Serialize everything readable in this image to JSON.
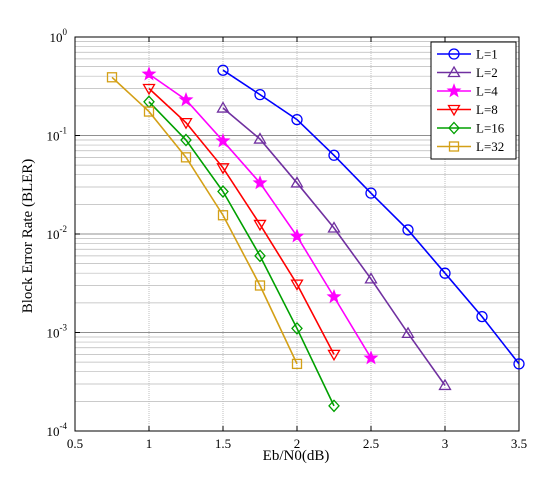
{
  "chart_data": {
    "type": "line",
    "xlabel": "Eb/N0(dB)",
    "ylabel": "Block Error Rate (BLER)",
    "xlim": [
      0.5,
      3.5
    ],
    "ylim": [
      0.0001,
      1
    ],
    "yscale": "log",
    "grid": true,
    "legend_position": "top-right",
    "x_ticks": [
      "0.5",
      "1",
      "1.5",
      "2",
      "2.5",
      "3",
      "3.5"
    ],
    "y_ticks": [
      {
        "base": "10",
        "exp": "0"
      },
      {
        "base": "10",
        "exp": "-1"
      },
      {
        "base": "10",
        "exp": "-2"
      },
      {
        "base": "10",
        "exp": "-3"
      },
      {
        "base": "10",
        "exp": "-4"
      }
    ],
    "series": [
      {
        "name": "L=1",
        "color": "#0000ff",
        "marker": "circle",
        "x": [
          1.5,
          1.75,
          2.0,
          2.25,
          2.5,
          2.75,
          3.0,
          3.25,
          3.5
        ],
        "y": [
          0.46,
          0.26,
          0.145,
          0.063,
          0.026,
          0.011,
          0.004,
          0.00145,
          0.00048
        ]
      },
      {
        "name": "L=2",
        "color": "#7030a0",
        "marker": "triangle-up",
        "x": [
          1.5,
          1.75,
          2.0,
          2.25,
          2.5,
          2.75,
          3.0
        ],
        "y": [
          0.19,
          0.092,
          0.033,
          0.0115,
          0.0035,
          0.00098,
          0.00029
        ]
      },
      {
        "name": "L=4",
        "color": "#ff00ff",
        "marker": "star",
        "x": [
          1.0,
          1.25,
          1.5,
          1.75,
          2.0,
          2.25,
          2.5
        ],
        "y": [
          0.42,
          0.23,
          0.088,
          0.033,
          0.0095,
          0.0023,
          0.00055
        ]
      },
      {
        "name": "L=8",
        "color": "#ff0000",
        "marker": "triangle-down",
        "x": [
          1.0,
          1.25,
          1.5,
          1.75,
          2.0,
          2.25
        ],
        "y": [
          0.3,
          0.135,
          0.047,
          0.0125,
          0.0031,
          0.0006
        ]
      },
      {
        "name": "L=16",
        "color": "#00a000",
        "marker": "diamond",
        "x": [
          1.0,
          1.25,
          1.5,
          1.75,
          2.0,
          2.25
        ],
        "y": [
          0.22,
          0.09,
          0.027,
          0.006,
          0.0011,
          0.00018
        ]
      },
      {
        "name": "L=32",
        "color": "#d4a017",
        "marker": "square",
        "x": [
          0.75,
          1.0,
          1.25,
          1.5,
          1.75,
          2.0
        ],
        "y": [
          0.39,
          0.175,
          0.06,
          0.0155,
          0.003,
          0.00048
        ]
      }
    ]
  }
}
